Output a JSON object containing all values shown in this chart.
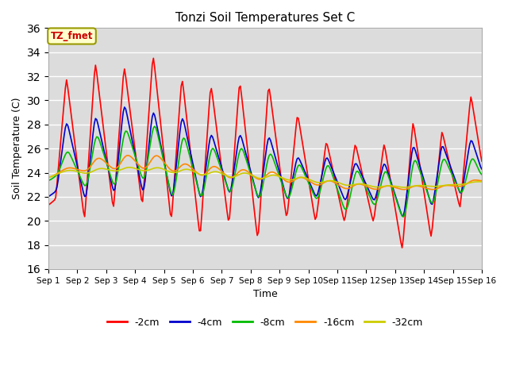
{
  "title": "Tonzi Soil Temperatures Set C",
  "xlabel": "Time",
  "ylabel": "Soil Temperature (C)",
  "ylim": [
    16,
    36
  ],
  "yticks": [
    16,
    18,
    20,
    22,
    24,
    26,
    28,
    30,
    32,
    34,
    36
  ],
  "bg_color": "#dcdcdc",
  "grid_color": "#ffffff",
  "annotation_text": "TZ_fmet",
  "annotation_bg": "#ffffcc",
  "annotation_border": "#999900",
  "series_colors": {
    "-2cm": "#ff0000",
    "-4cm": "#0000cc",
    "-8cm": "#00bb00",
    "-16cm": "#ff8800",
    "-32cm": "#cccc00"
  },
  "series_lw": 1.2,
  "x_tick_labels": [
    "Sep 1",
    "Sep 2",
    "Sep 3",
    "Sep 4",
    "Sep 5",
    "Sep 6",
    "Sep 7",
    "Sep 8",
    "Sep 9",
    "Sep 10",
    "Sep 11",
    "Sep 12",
    "Sep 13",
    "Sep 14",
    "Sep 15",
    "Sep 16"
  ]
}
